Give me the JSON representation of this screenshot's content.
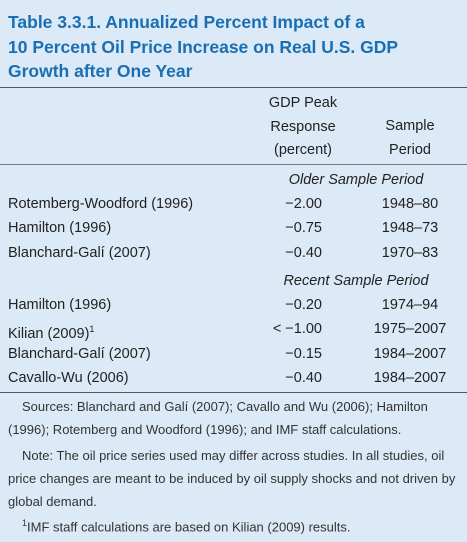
{
  "title": {
    "lines": [
      "Table 3.3.1. Annualized Percent Impact of a",
      "10 Percent Oil Price Increase on Real U.S. GDP",
      "Growth after One Year"
    ]
  },
  "table": {
    "header": {
      "response": [
        "GDP Peak",
        "Response",
        "(percent)"
      ],
      "period": [
        "Sample",
        "Period"
      ]
    },
    "sections": [
      {
        "title": "Older Sample Period",
        "rows": [
          {
            "name": "Rotemberg-Woodford (1996)",
            "response": "−2.00",
            "period": "1948–80"
          },
          {
            "name": "Hamilton (1996)",
            "response": "−0.75",
            "period": "1948–73"
          },
          {
            "name": "Blanchard-Galí (2007)",
            "response": "−0.40",
            "period": "1970–83"
          }
        ]
      },
      {
        "title": "Recent Sample Period",
        "rows": [
          {
            "name": "Hamilton (1996)",
            "response": "−0.20",
            "period": "1974–94"
          },
          {
            "name": "Kilian (2009)",
            "name_mark": "1",
            "response": "< −1.00",
            "period": "1975–2007"
          },
          {
            "name": "Blanchard-Galí (2007)",
            "response": "−0.15",
            "period": "1984–2007"
          },
          {
            "name": "Cavallo-Wu (2006)",
            "response": "−0.40",
            "period": "1984–2007"
          }
        ]
      }
    ]
  },
  "notes": {
    "sources": "Sources: Blanchard and Galí (2007); Cavallo and Wu (2006); Hamilton (1996); Rotemberg and Woodford (1996); and IMF staff calculations.",
    "note": "Note: The oil price series used may differ across studies. In all studies, oil price changes are meant to be induced by oil supply shocks and not driven by global demand.",
    "footnote": {
      "mark": "1",
      "text": "IMF staff calculations are based on Kilian (2009) results."
    }
  }
}
